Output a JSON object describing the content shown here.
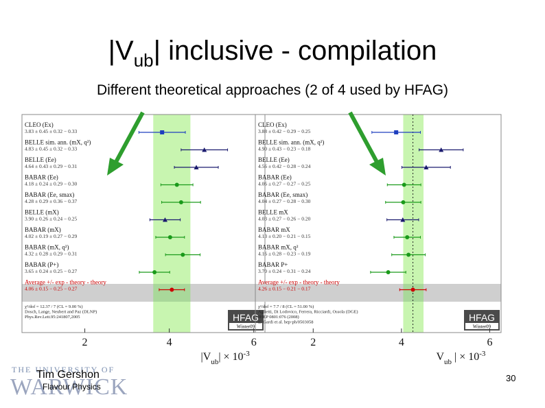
{
  "slide": {
    "title_main": "|V",
    "title_sub": "ub",
    "title_rest": "| inclusive - compilation",
    "subtitle": "Different theoretical approaches (2 of 4 used by HFAG)",
    "author": "Tim Gershon",
    "dept": "Flavour Physics",
    "slide_number": "30",
    "logo_top": "THE UNIVERSITY OF",
    "logo_bottom": "WARWICK"
  },
  "colors": {
    "band": "#c8f5b0",
    "average": "#cc0000",
    "green": "#1a9a1a",
    "blue": "#1f3fbf",
    "navy": "#1a1a6e",
    "arrow": "#2e9e2e"
  },
  "chart_data": [
    {
      "type": "scatter",
      "title": "",
      "xlabel": "|V_ub| × 10^-3",
      "xlim": [
        1,
        6
      ],
      "xticks": [
        2,
        4,
        6
      ],
      "badge": "HFAG",
      "badge_sub": "Winter09",
      "band": [
        3.62,
        4.5
      ],
      "footer": [
        "χ²/dof = 12.37 / 7 (CL = 9.00 %)",
        "Dosch, Lange, Neubert and Paz (DLNP)",
        "Phys.Rev.Lett.95:241807,2005"
      ],
      "points": [
        {
          "label": "CLEO (Ex)",
          "values": "3.83 ± 0.45 ± 0.32 − 0.33",
          "x": 3.83,
          "err": 0.55,
          "marker": "square",
          "color": "#1f3fbf"
        },
        {
          "label": "BELLE sim. ann. (mX, q²)",
          "values": "4.83 ± 0.45 ± 0.32 − 0.33",
          "x": 4.83,
          "err": 0.55,
          "marker": "triangle",
          "color": "#1a1a6e"
        },
        {
          "label": "BELLE (Ee)",
          "values": "4.64 ± 0.43 ± 0.29 − 0.31",
          "x": 4.64,
          "err": 0.52,
          "marker": "triangle",
          "color": "#1a1a6e"
        },
        {
          "label": "BABAR (Ee)",
          "values": "4.18 ± 0.24 ± 0.29 − 0.30",
          "x": 4.18,
          "err": 0.38,
          "marker": "circle",
          "color": "#1a9a1a"
        },
        {
          "label": "BABAR (Ee, smax)",
          "values": "4.28 ± 0.29 ± 0.36 − 0.37",
          "x": 4.28,
          "err": 0.46,
          "marker": "circle",
          "color": "#1a9a1a"
        },
        {
          "label": "BELLE (mX)",
          "values": "3.90 ± 0.26 ± 0.24 − 0.25",
          "x": 3.9,
          "err": 0.36,
          "marker": "triangle",
          "color": "#1a1a6e"
        },
        {
          "label": "BABAR (mX)",
          "values": "4.02 ± 0.19 ± 0.27 − 0.29",
          "x": 4.02,
          "err": 0.34,
          "marker": "circle",
          "color": "#1a9a1a"
        },
        {
          "label": "BABAR (mX, q²)",
          "values": "4.32 ± 0.28 ± 0.29 − 0.31",
          "x": 4.32,
          "err": 0.41,
          "marker": "circle",
          "color": "#1a9a1a"
        },
        {
          "label": "BABAR (P+)",
          "values": "3.65 ± 0.24 ± 0.25 − 0.27",
          "x": 3.65,
          "err": 0.36,
          "marker": "circle",
          "color": "#1a9a1a"
        },
        {
          "label": "Average +/- exp - theory - theory",
          "values": "4.06 ± 0.15 − 0.25 − 0.27",
          "x": 4.06,
          "err": 0.3,
          "marker": "circle",
          "color": "#cc0000",
          "average": true
        }
      ]
    },
    {
      "type": "scatter",
      "title": "",
      "xlabel": "V_ub | × 10^-3",
      "xlim": [
        1,
        6
      ],
      "xticks": [
        2,
        4,
        6
      ],
      "badge": "HFAG",
      "badge_sub": "Winter09",
      "band": [
        4.04,
        4.5
      ],
      "dashed_line": 4.26,
      "footer": [
        "χ²/dof = 7.7 / 8 (CL = 51.00 %)",
        "Aglietti, Di Lodovico, Ferrera, Ricciardi, Ossola (DGE)",
        "JHEP 0801:076 (2008)",
        "E. Gardi et al. hep-ph/0503058"
      ],
      "points": [
        {
          "label": "CLEO (Ex)",
          "values": "3.88 ± 0.42 − 0.29 − 0.25",
          "x": 3.88,
          "err": 0.55,
          "marker": "square",
          "color": "#1f3fbf"
        },
        {
          "label": "BELLE sim. ann. (mX, q²)",
          "values": "4.90 ± 0.43 − 0.23 − 0.18",
          "x": 4.9,
          "err": 0.5,
          "marker": "triangle",
          "color": "#1a1a6e"
        },
        {
          "label": "BELLE (Ee)",
          "values": "4.56 ± 0.42 − 0.28 − 0.24",
          "x": 4.56,
          "err": 0.55,
          "marker": "triangle",
          "color": "#1a1a6e"
        },
        {
          "label": "BABAR (Ee)",
          "values": "4.06 ± 0.27 − 0.27 − 0.25",
          "x": 4.06,
          "err": 0.38,
          "marker": "circle",
          "color": "#1a9a1a"
        },
        {
          "label": "BABAR (Ee, smax)",
          "values": "4.04 ± 0.27 − 0.28 − 0.30",
          "x": 4.04,
          "err": 0.4,
          "marker": "circle",
          "color": "#1a9a1a"
        },
        {
          "label": "BELLE mX",
          "values": "4.03 ± 0.27 − 0.26 − 0.20",
          "x": 4.03,
          "err": 0.36,
          "marker": "triangle",
          "color": "#1a1a6e"
        },
        {
          "label": "BABAR mX",
          "values": "4.13 ± 0.20 − 0.21 − 0.15",
          "x": 4.13,
          "err": 0.3,
          "marker": "circle",
          "color": "#1a9a1a"
        },
        {
          "label": "BABAR mX, q²",
          "values": "4.16 ± 0.28 − 0.23 − 0.19",
          "x": 4.16,
          "err": 0.38,
          "marker": "circle",
          "color": "#1a9a1a"
        },
        {
          "label": "BABAR P+",
          "values": "3.70 ± 0.24 − 0.31 − 0.24",
          "x": 3.7,
          "err": 0.4,
          "marker": "circle",
          "color": "#1a9a1a"
        },
        {
          "label": "Average +/- exp - theory - theory",
          "values": "4.26 ± 0.15 − 0.21 − 0.17",
          "x": 4.26,
          "err": 0.3,
          "marker": "circle",
          "color": "#cc0000",
          "average": true
        }
      ]
    }
  ]
}
